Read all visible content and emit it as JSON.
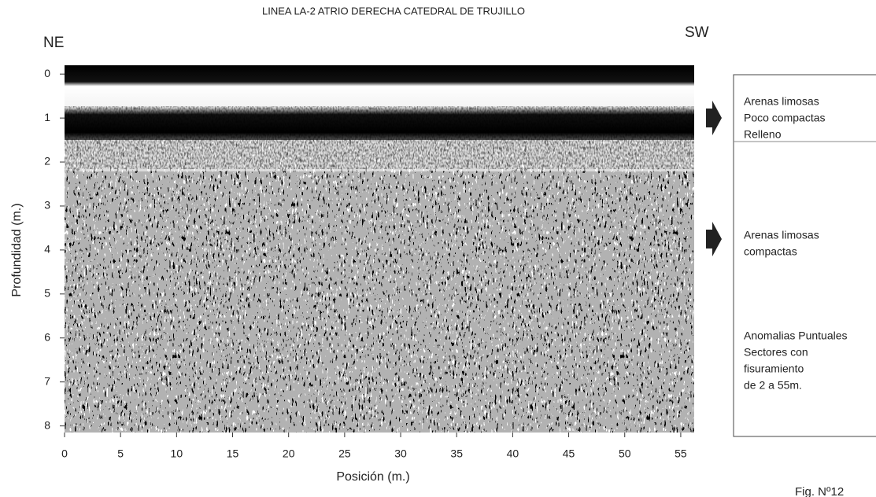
{
  "chart_data": {
    "type": "radargram",
    "title": "LINEA LA-2  ATRIO DERECHA CATEDRAL DE TRUJILLO",
    "left_label": "NE",
    "right_label": "SW",
    "xlabel": "Posición (m.)",
    "ylabel": "Profundidad (m.)",
    "xlim": [
      0,
      56.2
    ],
    "ylim": [
      -0.2,
      8.15
    ],
    "xticks": [
      0,
      5,
      10,
      15,
      20,
      25,
      30,
      35,
      40,
      45,
      50,
      55
    ],
    "yticks": [
      0,
      1,
      2,
      3,
      4,
      5,
      6,
      7,
      8
    ],
    "annotations": [
      {
        "lines": [
          "Arenas limosas",
          "Poco compactas",
          "Relleno"
        ]
      },
      {
        "lines": [
          "Arenas limosas",
          "compactas"
        ]
      },
      {
        "lines": [
          "Anomalias Puntuales",
          "Sectores con",
          "fisuramiento",
          "de 2 a 55m."
        ]
      }
    ],
    "figure_label": "Fig. Nº12"
  }
}
